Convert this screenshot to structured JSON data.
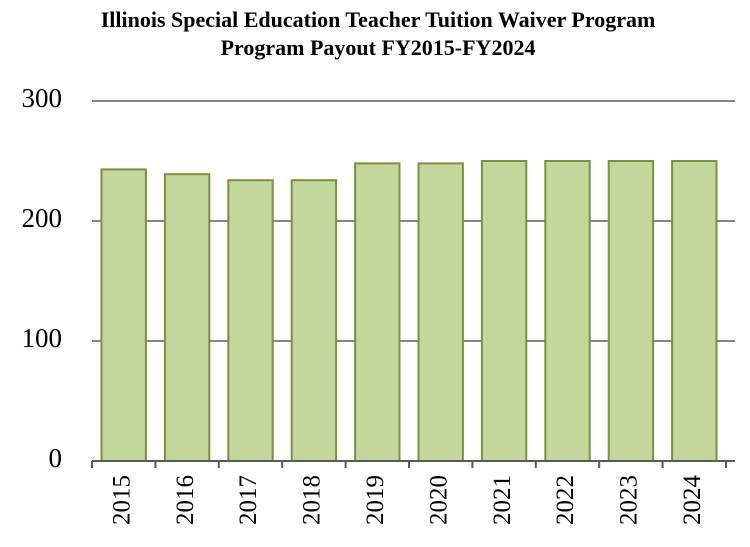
{
  "chart_data": {
    "type": "bar",
    "title": "Illinois Special Education Teacher Tuition Waiver Program",
    "subtitle": "Program Payout FY2015-FY2024",
    "categories": [
      "2015",
      "2016",
      "2017",
      "2018",
      "2019",
      "2020",
      "2021",
      "2022",
      "2023",
      "2024"
    ],
    "values": [
      243,
      239,
      234,
      234,
      248,
      248,
      250,
      250,
      250,
      250
    ],
    "color": "#c3d69b",
    "edge_color": "#77933c",
    "ylim": [
      0,
      300
    ],
    "yticks": [
      0,
      100,
      200,
      300
    ],
    "grid": true
  }
}
